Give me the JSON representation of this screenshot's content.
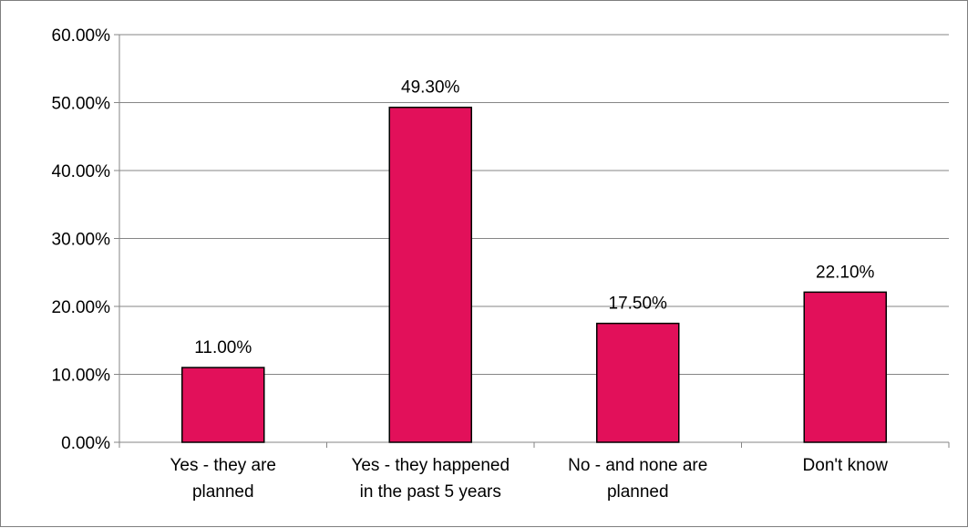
{
  "chart_data": {
    "type": "bar",
    "title": "",
    "xlabel": "",
    "ylabel": "",
    "categories": [
      [
        "Yes - they are",
        "planned"
      ],
      [
        "Yes - they happened",
        "in the past 5 years"
      ],
      [
        "No - and none are",
        "planned"
      ],
      [
        "Don't know"
      ]
    ],
    "values": [
      11.0,
      49.3,
      17.5,
      22.1
    ],
    "data_labels": [
      "11.00%",
      "49.30%",
      "17.50%",
      "22.10%"
    ],
    "ylim": [
      0,
      60
    ],
    "y_ticks": [
      0,
      10,
      20,
      30,
      40,
      50,
      60
    ],
    "y_tick_labels": [
      "0.00%",
      "10.00%",
      "20.00%",
      "30.00%",
      "40.00%",
      "50.00%",
      "60.00%"
    ],
    "grid": true,
    "legend": "none",
    "colors": {
      "bar_fill": "#E2105A",
      "bar_stroke": "#000000",
      "gridline": "#868686",
      "axis": "#868686"
    }
  }
}
